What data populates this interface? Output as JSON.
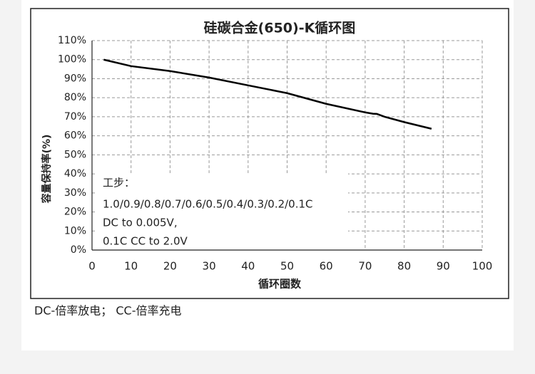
{
  "chart_data": {
    "type": "line",
    "title": "硅碳合金(650)-K循环图",
    "xlabel": "循环圈数",
    "ylabel": "容量保持率(%)",
    "annotations": [
      "工步：",
      "1.0/0.9/0.8/0.7/0.6/0.5/0.4/0.3/0.2/0.1C",
      "DC to 0.005V,",
      "0.1C CC to 2.0V"
    ],
    "caption": "DC-倍率放电； CC-倍率充电",
    "x": [
      3,
      10,
      20,
      30,
      40,
      50,
      60,
      70,
      72,
      73,
      75,
      80,
      87
    ],
    "series": [
      {
        "name": "容量保持率",
        "color": "#000000",
        "values": [
          100,
          96.6,
          94,
          90.6,
          86.5,
          82.4,
          76.8,
          72.3,
          71.6,
          71.5,
          70,
          67.2,
          63.7
        ]
      }
    ],
    "xlim": [
      0,
      100
    ],
    "xticks": [
      0,
      10,
      20,
      30,
      40,
      50,
      60,
      70,
      80,
      90,
      100
    ],
    "ylim": [
      0,
      110
    ],
    "yticks": [
      {
        "value": 0,
        "label": "0%"
      },
      {
        "value": 10,
        "label": "10%"
      },
      {
        "value": 20,
        "label": "20%"
      },
      {
        "value": 30,
        "label": "30%"
      },
      {
        "value": 40,
        "label": "40%"
      },
      {
        "value": 50,
        "label": "50%"
      },
      {
        "value": 60,
        "label": "60%"
      },
      {
        "value": 70,
        "label": "70%"
      },
      {
        "value": 80,
        "label": "80%"
      },
      {
        "value": 90,
        "label": "90%"
      },
      {
        "value": 100,
        "label": "100%"
      },
      {
        "value": 110,
        "label": "110%"
      }
    ],
    "grid": true
  }
}
